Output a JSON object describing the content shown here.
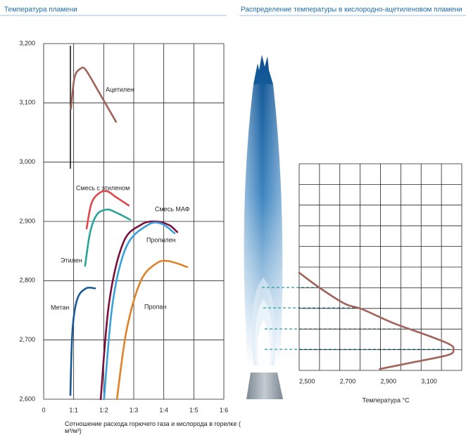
{
  "chart_data": [
    {
      "type": "line",
      "title": "Температура пламени",
      "xlabel": "Сотношение расхода горючего газа и кислорода в горелке ( м³/м³)",
      "xlim": [
        0,
        6
      ],
      "xticks": [
        0,
        {
          "value": 1,
          "label": "1:1"
        },
        {
          "value": 2,
          "label": "1:2"
        },
        {
          "value": 3,
          "label": "1:3"
        },
        {
          "value": 4,
          "label": "1:4"
        },
        {
          "value": 5,
          "label": "1:5"
        },
        {
          "value": 6,
          "label": "1:6"
        }
      ],
      "ylim": [
        2600,
        3200
      ],
      "yticks": [
        {
          "value": 2600,
          "label": "2,600"
        },
        {
          "value": 2700,
          "label": "2,700"
        },
        {
          "value": 2800,
          "label": "2,800"
        },
        {
          "value": 2900,
          "label": "2,900"
        },
        {
          "value": 3000,
          "label": "3,000"
        },
        {
          "value": 3100,
          "label": "3,100"
        },
        {
          "value": 3200,
          "label": "3,200"
        }
      ],
      "grid": true,
      "series": [
        {
          "name": "Ацетилен",
          "color": "#a0645a",
          "x": [
            0.91,
            1.03,
            1.24,
            1.41,
            1.83,
            2.41
          ],
          "values": [
            3090,
            3143,
            3158,
            3155,
            3119,
            3068
          ]
        },
        {
          "name": "Смесь с этиленом",
          "color": "#e0474c",
          "x": [
            1.43,
            1.59,
            1.83,
            2.11,
            2.41,
            2.83
          ],
          "values": [
            2888,
            2930,
            2947,
            2951,
            2941,
            2927
          ]
        },
        {
          "name": "Смесь МАФ",
          "color": "#7a1040",
          "x": [
            1.9,
            2.18,
            2.65,
            3.23,
            3.7,
            4.17,
            4.45
          ],
          "values": [
            2600,
            2763,
            2864,
            2894,
            2900,
            2894,
            2882
          ]
        },
        {
          "name": "Пропилен",
          "color": "#3aa0dc",
          "x": [
            2.01,
            2.3,
            2.76,
            3.47,
            3.93,
            4.36
          ],
          "values": [
            2600,
            2763,
            2858,
            2894,
            2896,
            2880
          ]
        },
        {
          "name": "Этилен",
          "color": "#2aa39a",
          "x": [
            1.38,
            1.55,
            1.78,
            2.11,
            2.41,
            2.88
          ],
          "values": [
            2825,
            2882,
            2912,
            2920,
            2915,
            2903
          ]
        },
        {
          "name": "Метан",
          "color": "#1a5a96",
          "x": [
            0.89,
            0.96,
            1.12,
            1.41,
            1.71
          ],
          "values": [
            2607,
            2716,
            2769,
            2787,
            2787
          ]
        },
        {
          "name": "Пропан",
          "color": "#e0822a",
          "x": [
            2.44,
            2.76,
            3.23,
            3.75,
            4.17,
            4.78
          ],
          "values": [
            2600,
            2716,
            2799,
            2829,
            2833,
            2823
          ]
        }
      ]
    },
    {
      "type": "line",
      "title": "Распределение температуры в кислородно-ацетиленовом пламени",
      "xlabel": "Температура °C",
      "xlim": [
        2500,
        3300
      ],
      "xticks": [
        {
          "value": 2500,
          "label": "2,500"
        },
        {
          "value": 2700,
          "label": "2,700"
        },
        {
          "value": 2900,
          "label": "2,900"
        },
        {
          "value": 3100,
          "label": "3,100"
        }
      ],
      "ylim": [
        0,
        10
      ],
      "series": [
        {
          "color": "#a0645a",
          "x": [
            2500,
            2603,
            2724,
            2810,
            2966,
            3138,
            3241,
            3259,
            3234,
            3069,
            2897
          ],
          "values": [
            4.73,
            3.98,
            3.23,
            2.96,
            2.28,
            1.67,
            1.26,
            1.02,
            0.75,
            0.41,
            0.07
          ]
        }
      ]
    }
  ]
}
